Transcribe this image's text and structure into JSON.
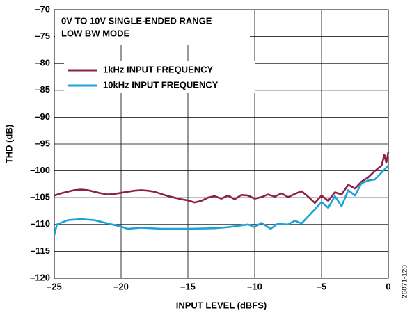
{
  "chart_data": {
    "type": "line",
    "annotations": [
      "0V TO 10V SINGLE-ENDED RANGE",
      "LOW BW MODE"
    ],
    "xlabel": "INPUT LEVEL (dBFS)",
    "ylabel": "THD (dB)",
    "figure_code": "26071-120",
    "xlim": [
      -25,
      0
    ],
    "ylim": [
      -120,
      -70
    ],
    "xticks": [
      {
        "value": -25,
        "label": "–25"
      },
      {
        "value": -20,
        "label": "–20"
      },
      {
        "value": -15,
        "label": "–15"
      },
      {
        "value": -10,
        "label": "–10"
      },
      {
        "value": -5,
        "label": "–5"
      },
      0
    ],
    "yticks": [
      {
        "value": -120,
        "label": "–120"
      },
      {
        "value": -115,
        "label": "–115"
      },
      {
        "value": -110,
        "label": "–110"
      },
      {
        "value": -105,
        "label": "–105"
      },
      {
        "value": -100,
        "label": "–100"
      },
      {
        "value": -95,
        "label": "–95"
      },
      {
        "value": -90,
        "label": "–90"
      },
      {
        "value": -85,
        "label": "–85"
      },
      {
        "value": -80,
        "label": "–80"
      },
      {
        "value": -75,
        "label": "–75"
      },
      {
        "value": -70,
        "label": "–70"
      }
    ],
    "grid": true,
    "series": [
      {
        "name": "1kHz INPUT FREQUENCY",
        "color": "#8c2248",
        "x": [
          -25,
          -24.5,
          -24,
          -23.5,
          -23,
          -22.5,
          -22,
          -21.5,
          -21,
          -20.5,
          -20,
          -19.5,
          -19,
          -18.5,
          -18,
          -17.5,
          -17,
          -16.5,
          -16,
          -15.5,
          -15,
          -14.5,
          -14,
          -13.5,
          -13,
          -12.5,
          -12,
          -11.5,
          -11,
          -10.5,
          -10,
          -9.5,
          -9,
          -8.5,
          -8,
          -7.5,
          -7,
          -6.5,
          -6,
          -5.5,
          -5,
          -4.5,
          -4,
          -3.5,
          -3,
          -2.5,
          -2,
          -1.5,
          -1,
          -0.5,
          -0.3,
          -0.15,
          0
        ],
        "values": [
          -104.6,
          -104.2,
          -103.9,
          -103.6,
          -103.5,
          -103.6,
          -103.9,
          -104.2,
          -104.4,
          -104.3,
          -104.1,
          -103.9,
          -103.7,
          -103.6,
          -103.7,
          -103.9,
          -104.3,
          -104.7,
          -105.0,
          -105.3,
          -105.5,
          -105.9,
          -105.6,
          -105.0,
          -104.7,
          -105.2,
          -104.6,
          -105.3,
          -104.5,
          -104.6,
          -105.2,
          -104.9,
          -104.4,
          -104.8,
          -104.2,
          -104.9,
          -104.3,
          -103.8,
          -104.8,
          -106.0,
          -104.6,
          -105.6,
          -104.0,
          -104.4,
          -102.6,
          -103.3,
          -102.0,
          -101.2,
          -100.0,
          -99.0,
          -97.0,
          -98.5,
          -96.5
        ]
      },
      {
        "name": "10kHz INPUT FREQUENCY",
        "color": "#1ba3d9",
        "x": [
          -25,
          -24.8,
          -24,
          -23,
          -22,
          -21,
          -20,
          -19.5,
          -18.5,
          -17,
          -15,
          -13,
          -12,
          -10.5,
          -10,
          -9.5,
          -8.8,
          -8.3,
          -7.5,
          -7,
          -6.5,
          -6,
          -5.5,
          -5,
          -4.5,
          -4,
          -3.5,
          -3,
          -2.5,
          -2,
          -1.5,
          -1,
          -0.5,
          0
        ],
        "values": [
          -112.0,
          -110.0,
          -109.2,
          -109.0,
          -109.2,
          -109.8,
          -110.4,
          -110.8,
          -110.6,
          -110.8,
          -110.8,
          -110.7,
          -110.5,
          -110.0,
          -110.5,
          -109.7,
          -110.8,
          -109.9,
          -110.0,
          -109.3,
          -109.8,
          -108.5,
          -107.2,
          -105.8,
          -106.9,
          -104.7,
          -106.6,
          -103.6,
          -104.6,
          -102.3,
          -101.8,
          -101.6,
          -100.3,
          -99.0
        ]
      }
    ]
  }
}
